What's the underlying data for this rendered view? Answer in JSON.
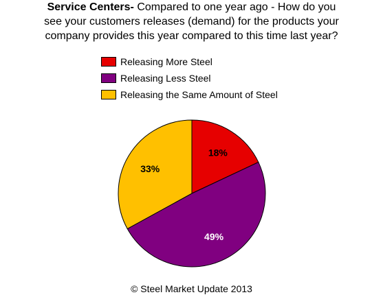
{
  "chart_data": {
    "type": "pie",
    "title_bold": "Service Centers-",
    "title_rest": " Compared to one year ago - How do you",
    "title_line2": "see your customers releases (demand) for the products your",
    "title_line3": "company provides this year compared to this time last year?",
    "categories": [
      "Releasing More Steel",
      "Releasing Less Steel",
      "Releasing the Same Amount of Steel"
    ],
    "values": [
      18,
      49,
      33
    ],
    "labels": [
      "18%",
      "49%",
      "33%"
    ],
    "colors": [
      "#e60000",
      "#800080",
      "#ffc000"
    ],
    "label_colors": [
      "#000000",
      "#ffffff",
      "#000000"
    ],
    "legend_position": "top",
    "start_angle_deg": 0,
    "direction": "clockwise"
  },
  "footer": "© Steel Market Update 2013"
}
